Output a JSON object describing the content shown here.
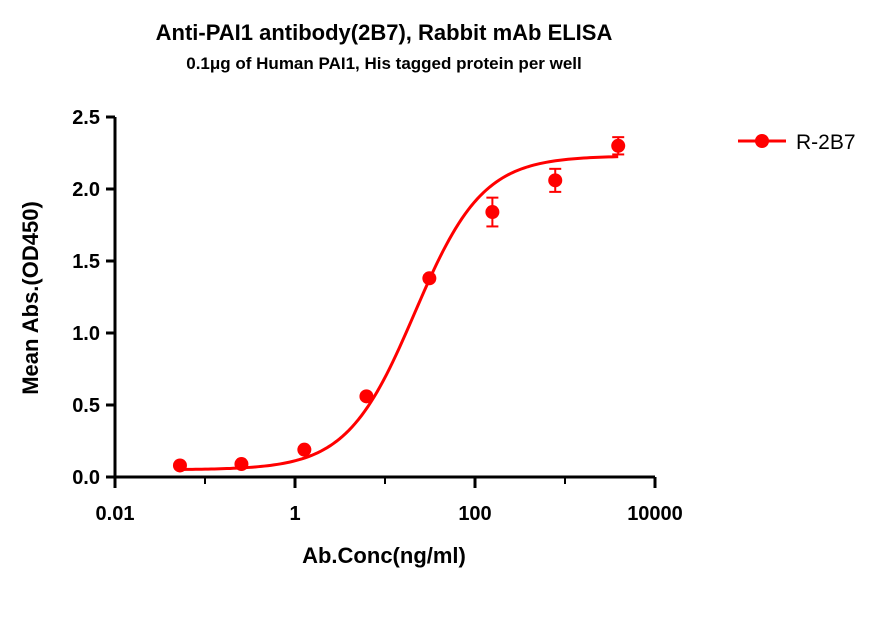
{
  "chart_data": {
    "type": "scatter",
    "title": "Anti-PAI1 antibody(2B7), Rabbit mAb ELISA",
    "subtitle": "0.1μg of Human PAI1, His tagged protein per well",
    "xlabel": "Ab.Conc(ng/ml)",
    "ylabel": "Mean Abs.(OD450)",
    "x_scale": "log",
    "xlim": [
      0.01,
      10000
    ],
    "ylim": [
      0,
      2.5
    ],
    "x_ticks": [
      0.01,
      1,
      100,
      10000
    ],
    "x_tick_labels": [
      "0.01",
      "1",
      "100",
      "10000"
    ],
    "y_ticks": [
      0.0,
      0.5,
      1.0,
      1.5,
      2.0,
      2.5
    ],
    "y_tick_labels": [
      "0.0",
      "0.5",
      "1.0",
      "1.5",
      "2.0",
      "2.5"
    ],
    "legend_position": "top-right",
    "grid": false,
    "series": [
      {
        "name": "R-2B7",
        "color": "#ff0000",
        "x": [
          0.0527,
          0.254,
          1.27,
          6.22,
          31.1,
          156,
          779,
          3902
        ],
        "y": [
          0.08,
          0.09,
          0.19,
          0.56,
          1.38,
          1.84,
          2.06,
          2.3
        ],
        "err": [
          0.01,
          0.01,
          0.01,
          0.02,
          0.02,
          0.1,
          0.08,
          0.06
        ],
        "fit": {
          "model": "4PL",
          "bottom": 0.05,
          "top": 2.23,
          "ec50": 21.4,
          "hill": 1.15
        }
      }
    ]
  }
}
